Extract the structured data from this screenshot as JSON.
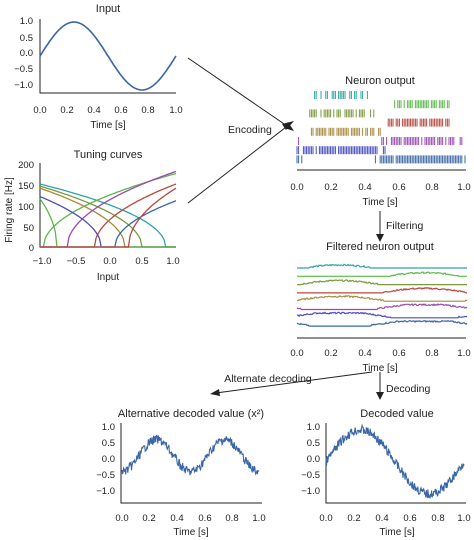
{
  "panels": {
    "input": {
      "title": "Input",
      "xlabel": "Time [s]",
      "yticks": [
        "1.0",
        "0.5",
        "0.0",
        "−0.5",
        "−1.0"
      ],
      "xticks": [
        "0.0",
        "0.2",
        "0.4",
        "0.6",
        "0.8",
        "1.0"
      ]
    },
    "tuning": {
      "title": "Tuning curves",
      "xlabel": "Input",
      "ylabel": "Firing rate [Hz]",
      "yticks": [
        "200",
        "150",
        "100",
        "50",
        "0"
      ],
      "xticks": [
        "−1.0",
        "−0.5",
        "0.0",
        "0.5",
        "1.0"
      ]
    },
    "neuron_output": {
      "title": "Neuron output",
      "xlabel": "Time [s]",
      "xticks": [
        "0.0",
        "0.2",
        "0.4",
        "0.6",
        "0.8",
        "1.0"
      ]
    },
    "filtered": {
      "title": "Filtered neuron output",
      "xlabel": "Time [s]",
      "xticks": [
        "0.0",
        "0.2",
        "0.4",
        "0.6",
        "0.8",
        "1.0"
      ]
    },
    "alt_decoded": {
      "title": "Alternative decoded value (x²)",
      "xlabel": "Time [s]",
      "yticks": [
        "1.0",
        "0.5",
        "0.0",
        "−0.5",
        "−1.0"
      ],
      "xticks": [
        "0.0",
        "0.2",
        "0.4",
        "0.6",
        "0.8",
        "1.0"
      ]
    },
    "decoded": {
      "title": "Decoded value",
      "xlabel": "Time [s]",
      "yticks": [
        "1.0",
        "0.5",
        "0.0",
        "−0.5",
        "−1.0"
      ],
      "xticks": [
        "0.0",
        "0.2",
        "0.4",
        "0.6",
        "0.8",
        "1.0"
      ]
    }
  },
  "arrows": {
    "encoding": "Encoding",
    "filtering": "Filtering",
    "alternate_decoding": "Alternate decoding",
    "decoding": "Decoding"
  },
  "colors": {
    "signal": "#3a66a8",
    "neurons": [
      "#2fa4a8",
      "#5bb84a",
      "#7a9a3c",
      "#b9473e",
      "#a9893e",
      "#9b4ab0",
      "#4a4ec0",
      "#3a66a8"
    ]
  }
}
